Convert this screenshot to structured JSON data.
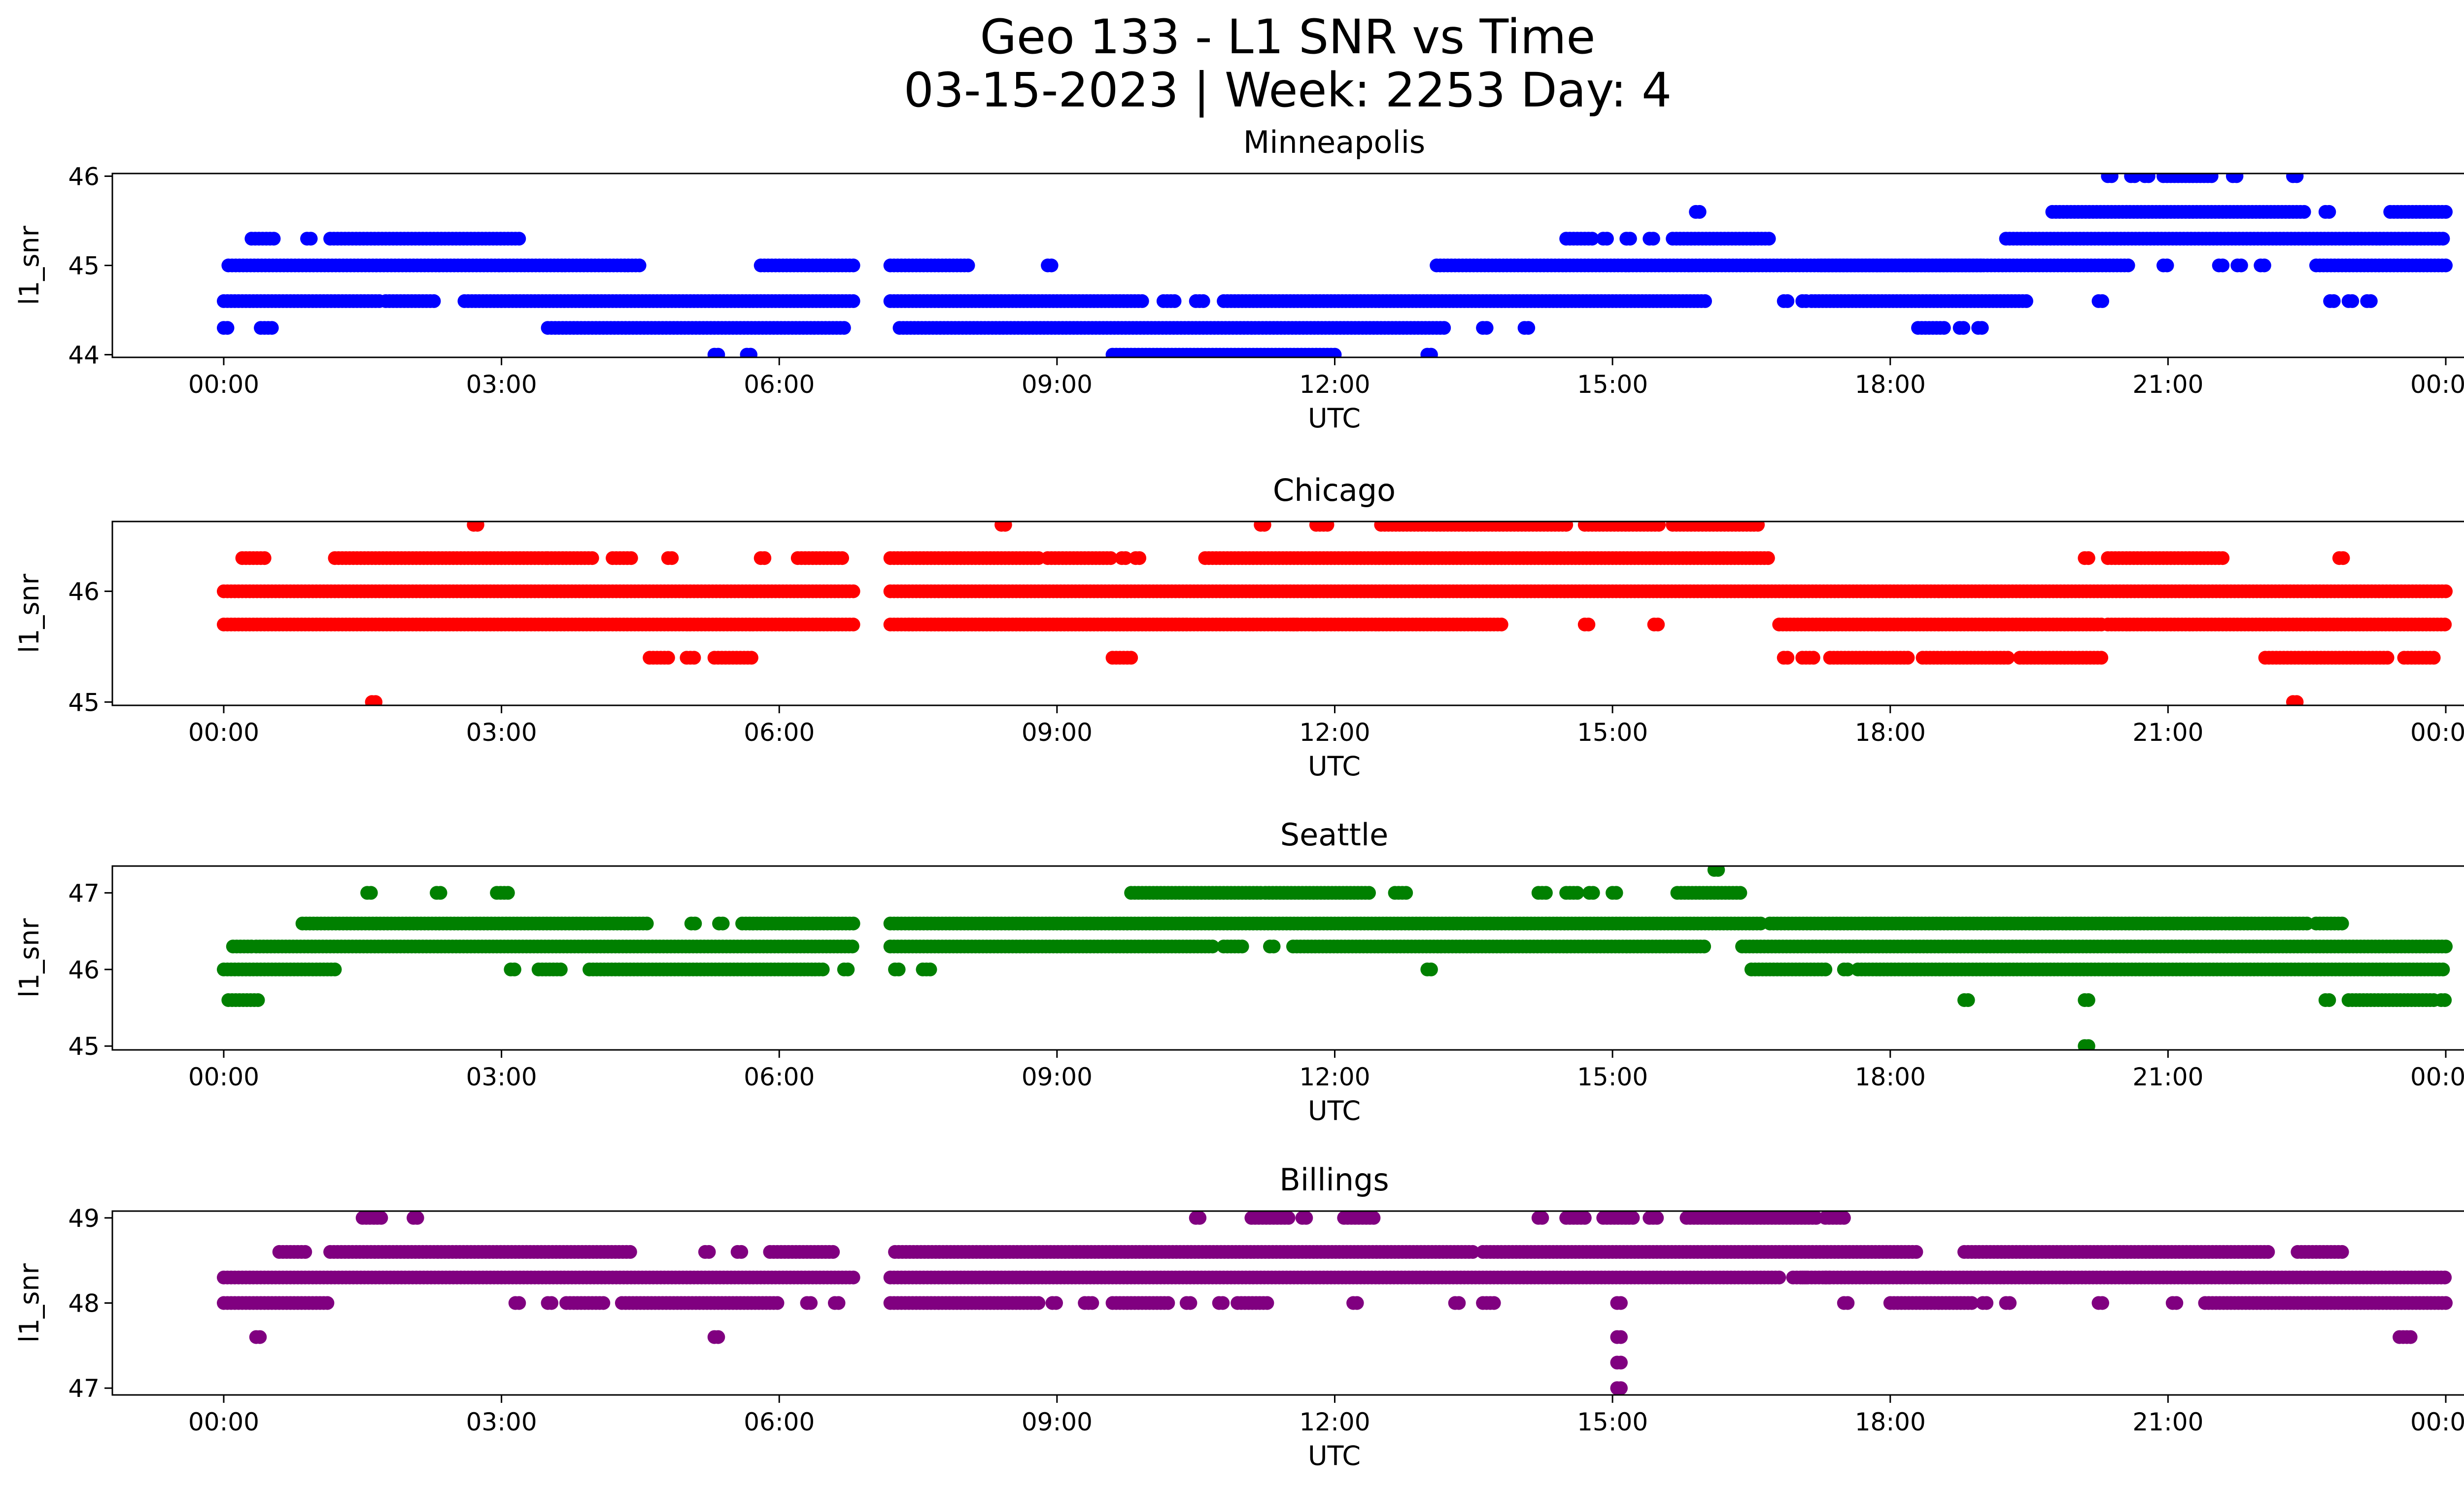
{
  "figure": {
    "title_line1": "Geo 133 - L1 SNR vs Time",
    "title_line2": "03-15-2023 | Week: 2253 Day: 4"
  },
  "chart_data": [
    {
      "type": "scatter",
      "title": "Minneapolis",
      "xlabel": "UTC",
      "ylabel": "l1_snr",
      "color": "#0000ff",
      "xlim": [
        "23:00",
        "01:30 (+1 day)"
      ],
      "ylim": [
        43.97,
        46.03
      ],
      "xticks": [
        "00:00",
        "03:00",
        "06:00",
        "09:00",
        "12:00",
        "15:00",
        "18:00",
        "21:00",
        "00:00"
      ],
      "yticks": [
        44,
        45,
        46
      ],
      "runs": [
        [
          44.3,
          0.0,
          0.05
        ],
        [
          44.3,
          0.4,
          0.55
        ],
        [
          44.6,
          0.0,
          1.7
        ],
        [
          44.6,
          1.75,
          2.3
        ],
        [
          44.6,
          2.6,
          6.8
        ],
        [
          45.0,
          0.05,
          4.5
        ],
        [
          45.3,
          0.3,
          0.55
        ],
        [
          45.3,
          0.9,
          0.95
        ],
        [
          45.3,
          1.15,
          3.2
        ],
        [
          44.3,
          3.5,
          6.7
        ],
        [
          44.0,
          5.3,
          5.35
        ],
        [
          44.0,
          5.65,
          5.7
        ],
        [
          45.0,
          5.8,
          6.8
        ],
        [
          44.6,
          7.2,
          9.95
        ],
        [
          45.0,
          7.2,
          8.05
        ],
        [
          44.3,
          7.3,
          13.2
        ],
        [
          45.0,
          8.9,
          8.95
        ],
        [
          44.0,
          9.6,
          12.0
        ],
        [
          44.6,
          10.15,
          10.3
        ],
        [
          44.6,
          10.5,
          10.6
        ],
        [
          44.6,
          10.8,
          16.0
        ],
        [
          44.0,
          13.0,
          13.05
        ],
        [
          45.0,
          13.1,
          19.0
        ],
        [
          44.3,
          13.6,
          13.65
        ],
        [
          44.3,
          14.05,
          14.1
        ],
        [
          45.3,
          14.5,
          14.8
        ],
        [
          45.3,
          14.9,
          14.95
        ],
        [
          45.3,
          15.15,
          15.2
        ],
        [
          45.3,
          15.4,
          15.45
        ],
        [
          45.3,
          15.65,
          16.7
        ],
        [
          45.6,
          15.9,
          15.95
        ],
        [
          44.6,
          16.85,
          16.9
        ],
        [
          44.6,
          17.05,
          17.1
        ],
        [
          44.6,
          17.15,
          19.5
        ],
        [
          45.0,
          17.25,
          20.6
        ],
        [
          44.3,
          18.3,
          18.6
        ],
        [
          44.3,
          18.75,
          18.8
        ],
        [
          44.3,
          18.95,
          19.0
        ],
        [
          45.3,
          19.25,
          24.0
        ],
        [
          45.6,
          19.75,
          22.5
        ],
        [
          44.6,
          20.25,
          20.3
        ],
        [
          46.0,
          20.35,
          20.4
        ],
        [
          46.0,
          20.6,
          20.65
        ],
        [
          46.0,
          20.75,
          20.8
        ],
        [
          46.0,
          20.95,
          21.5
        ],
        [
          45.0,
          20.95,
          21.0
        ],
        [
          45.0,
          21.55,
          21.6
        ],
        [
          45.0,
          21.75,
          21.8
        ],
        [
          45.0,
          22.0,
          22.05
        ],
        [
          46.0,
          21.7,
          21.75
        ],
        [
          46.0,
          22.35,
          22.4
        ],
        [
          45.0,
          22.6,
          24.0
        ],
        [
          45.6,
          22.7,
          22.75
        ],
        [
          44.6,
          22.75,
          22.8
        ],
        [
          44.6,
          22.95,
          23.0
        ],
        [
          44.6,
          23.15,
          23.2
        ],
        [
          45.6,
          23.4,
          24.0
        ]
      ]
    },
    {
      "type": "scatter",
      "title": "Chicago",
      "xlabel": "UTC",
      "ylabel": "l1_snr",
      "color": "#ff0000",
      "xlim": [
        "23:00",
        "01:30 (+1 day)"
      ],
      "ylim": [
        44.97,
        46.63
      ],
      "xticks": [
        "00:00",
        "03:00",
        "06:00",
        "09:00",
        "12:00",
        "15:00",
        "18:00",
        "21:00",
        "00:00"
      ],
      "yticks": [
        45,
        46
      ],
      "runs": [
        [
          45.7,
          0.0,
          6.8
        ],
        [
          46.0,
          0.0,
          6.8
        ],
        [
          46.3,
          0.2,
          0.45
        ],
        [
          46.3,
          1.2,
          3.5
        ],
        [
          45.0,
          1.6,
          1.65
        ],
        [
          46.6,
          2.7,
          2.75
        ],
        [
          46.3,
          3.5,
          4.0
        ],
        [
          46.3,
          4.2,
          4.4
        ],
        [
          46.3,
          4.8,
          4.85
        ],
        [
          45.4,
          4.6,
          4.8
        ],
        [
          45.4,
          5.0,
          5.1
        ],
        [
          45.4,
          5.3,
          5.7
        ],
        [
          46.3,
          5.8,
          5.85
        ],
        [
          46.3,
          6.2,
          6.7
        ],
        [
          45.7,
          7.2,
          13.8
        ],
        [
          46.0,
          7.2,
          24.0
        ],
        [
          45.7,
          7.4,
          7.45
        ],
        [
          45.7,
          7.6,
          10.4
        ],
        [
          46.3,
          7.2,
          8.8
        ],
        [
          46.6,
          8.4,
          8.45
        ],
        [
          46.3,
          8.9,
          9.6
        ],
        [
          46.3,
          9.7,
          9.75
        ],
        [
          46.3,
          9.85,
          9.9
        ],
        [
          45.4,
          9.6,
          9.8
        ],
        [
          46.3,
          10.6,
          16.7
        ],
        [
          46.6,
          11.2,
          11.25
        ],
        [
          45.7,
          11.55,
          11.6
        ],
        [
          46.6,
          11.8,
          11.95
        ],
        [
          46.6,
          12.5,
          14.5
        ],
        [
          46.6,
          14.7,
          15.5
        ],
        [
          46.6,
          15.65,
          16.6
        ],
        [
          45.7,
          14.7,
          14.75
        ],
        [
          45.7,
          15.45,
          15.5
        ],
        [
          45.7,
          16.8,
          20.3
        ],
        [
          45.4,
          16.85,
          16.9
        ],
        [
          45.4,
          17.05,
          17.2
        ],
        [
          45.4,
          17.35,
          18.2
        ],
        [
          45.4,
          18.35,
          19.3
        ],
        [
          45.4,
          19.4,
          20.3
        ],
        [
          45.7,
          20.35,
          24.0
        ],
        [
          46.3,
          20.1,
          20.15
        ],
        [
          46.3,
          20.35,
          21.6
        ],
        [
          45.0,
          22.35,
          22.4
        ],
        [
          45.4,
          22.05,
          23.4
        ],
        [
          46.3,
          22.85,
          22.9
        ],
        [
          45.4,
          23.55,
          23.9
        ]
      ]
    },
    {
      "type": "scatter",
      "title": "Seattle",
      "xlabel": "UTC",
      "ylabel": "l1_snr",
      "color": "#008000",
      "xlim": [
        "23:00",
        "01:30 (+1 day)"
      ],
      "ylim": [
        44.95,
        47.35
      ],
      "xticks": [
        "00:00",
        "03:00",
        "06:00",
        "09:00",
        "12:00",
        "15:00",
        "18:00",
        "21:00",
        "00:00"
      ],
      "yticks": [
        45,
        46,
        47
      ],
      "runs": [
        [
          46.0,
          0.0,
          1.2
        ],
        [
          45.6,
          0.05,
          0.4
        ],
        [
          46.3,
          0.1,
          0.3
        ],
        [
          46.3,
          0.35,
          6.8
        ],
        [
          46.6,
          0.85,
          4.6
        ],
        [
          47.0,
          1.55,
          1.6
        ],
        [
          47.0,
          2.3,
          2.35
        ],
        [
          47.0,
          2.95,
          3.1
        ],
        [
          46.0,
          3.1,
          3.15
        ],
        [
          46.0,
          3.4,
          3.65
        ],
        [
          46.0,
          3.95,
          6.5
        ],
        [
          46.6,
          5.05,
          5.1
        ],
        [
          46.6,
          5.35,
          5.4
        ],
        [
          46.6,
          5.6,
          6.8
        ],
        [
          46.0,
          6.7,
          6.75
        ],
        [
          46.3,
          7.2,
          10.7
        ],
        [
          46.6,
          7.2,
          16.6
        ],
        [
          46.0,
          7.25,
          7.3
        ],
        [
          46.0,
          7.55,
          7.65
        ],
        [
          46.3,
          10.8,
          11.0
        ],
        [
          46.3,
          11.3,
          11.35
        ],
        [
          47.0,
          9.8,
          11.2
        ],
        [
          47.0,
          11.25,
          12.4
        ],
        [
          47.0,
          12.65,
          12.8
        ],
        [
          46.3,
          11.55,
          16.0
        ],
        [
          46.0,
          13.0,
          13.05
        ],
        [
          47.0,
          14.2,
          14.3
        ],
        [
          47.0,
          14.5,
          14.65
        ],
        [
          47.0,
          14.75,
          14.8
        ],
        [
          47.0,
          15.0,
          15.05
        ],
        [
          47.0,
          15.7,
          16.4
        ],
        [
          47.3,
          16.1,
          16.15
        ],
        [
          46.3,
          16.4,
          24.0
        ],
        [
          46.6,
          16.7,
          22.5
        ],
        [
          46.0,
          16.5,
          17.3
        ],
        [
          46.0,
          17.5,
          17.55
        ],
        [
          46.0,
          17.65,
          24.0
        ],
        [
          45.6,
          18.8,
          18.85
        ],
        [
          45.6,
          20.1,
          20.15
        ],
        [
          45.0,
          20.1,
          20.15
        ],
        [
          46.6,
          22.6,
          22.9
        ],
        [
          45.6,
          22.7,
          22.75
        ],
        [
          45.6,
          22.95,
          23.9
        ],
        [
          45.6,
          23.95,
          24.0
        ]
      ]
    },
    {
      "type": "scatter",
      "title": "Billings",
      "xlabel": "UTC",
      "ylabel": "l1_snr",
      "color": "#800080",
      "xlim": [
        "23:00",
        "01:30 (+1 day)"
      ],
      "ylim": [
        46.92,
        49.08
      ],
      "xticks": [
        "00:00",
        "03:00",
        "06:00",
        "09:00",
        "12:00",
        "15:00",
        "18:00",
        "21:00",
        "00:00"
      ],
      "yticks": [
        47,
        48,
        49
      ],
      "runs": [
        [
          48.0,
          0.0,
          1.15
        ],
        [
          48.3,
          0.0,
          6.8
        ],
        [
          47.6,
          0.35,
          0.4
        ],
        [
          48.6,
          0.6,
          0.9
        ],
        [
          48.6,
          1.15,
          4.4
        ],
        [
          49.0,
          1.5,
          1.7
        ],
        [
          49.0,
          2.05,
          2.1
        ],
        [
          48.0,
          3.15,
          3.2
        ],
        [
          48.0,
          3.5,
          3.55
        ],
        [
          48.0,
          3.7,
          4.1
        ],
        [
          48.0,
          4.3,
          6.0
        ],
        [
          48.6,
          5.2,
          5.25
        ],
        [
          47.6,
          5.3,
          5.35
        ],
        [
          48.6,
          5.55,
          5.6
        ],
        [
          48.6,
          5.9,
          6.6
        ],
        [
          48.0,
          6.3,
          6.35
        ],
        [
          48.0,
          6.6,
          6.65
        ],
        [
          48.0,
          7.2,
          8.8
        ],
        [
          48.3,
          7.2,
          16.8
        ],
        [
          48.6,
          7.25,
          13.5
        ],
        [
          48.0,
          8.95,
          9.0
        ],
        [
          48.0,
          9.3,
          9.4
        ],
        [
          48.0,
          9.6,
          10.2
        ],
        [
          48.0,
          10.4,
          10.45
        ],
        [
          48.0,
          10.75,
          10.8
        ],
        [
          48.0,
          10.95,
          11.3
        ],
        [
          48.0,
          12.2,
          12.25
        ],
        [
          49.0,
          10.5,
          10.55
        ],
        [
          49.0,
          11.1,
          11.5
        ],
        [
          49.0,
          11.65,
          11.7
        ],
        [
          49.0,
          12.1,
          12.45
        ],
        [
          48.6,
          13.6,
          18.3
        ],
        [
          48.0,
          13.3,
          13.35
        ],
        [
          48.0,
          13.6,
          13.75
        ],
        [
          49.0,
          14.2,
          14.25
        ],
        [
          49.0,
          14.5,
          14.7
        ],
        [
          49.0,
          14.9,
          15.25
        ],
        [
          49.0,
          15.4,
          15.5
        ],
        [
          49.0,
          15.8,
          17.2
        ],
        [
          49.0,
          17.3,
          17.5
        ],
        [
          47.0,
          15.05,
          15.1
        ],
        [
          47.3,
          15.05,
          15.1
        ],
        [
          47.6,
          15.05,
          15.1
        ],
        [
          48.0,
          15.05,
          15.1
        ],
        [
          48.3,
          16.95,
          24.0
        ],
        [
          48.3,
          17.05,
          17.1
        ],
        [
          48.3,
          17.3,
          17.35
        ],
        [
          48.0,
          17.5,
          17.55
        ],
        [
          48.0,
          18.0,
          18.9
        ],
        [
          48.0,
          19.0,
          19.05
        ],
        [
          48.0,
          19.25,
          19.3
        ],
        [
          48.6,
          18.8,
          22.1
        ],
        [
          48.0,
          20.25,
          20.3
        ],
        [
          48.0,
          21.05,
          21.1
        ],
        [
          48.0,
          21.4,
          24.0
        ],
        [
          48.6,
          22.4,
          22.9
        ],
        [
          47.6,
          23.5,
          23.65
        ]
      ]
    }
  ]
}
